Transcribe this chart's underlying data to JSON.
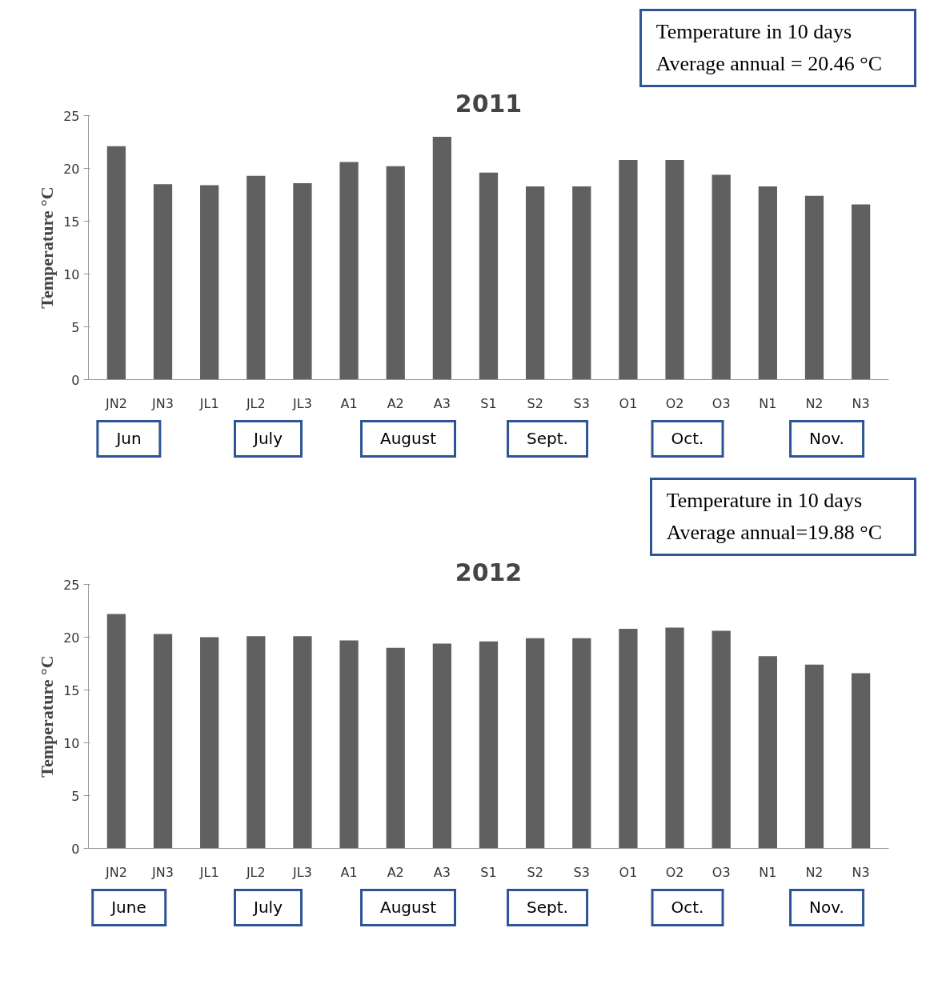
{
  "chart_data": [
    {
      "type": "bar",
      "title": "2011",
      "ylabel": "Temperature °C",
      "categories": [
        "JN2",
        "JN3",
        "JL1",
        "JL2",
        "JL3",
        "A1",
        "A2",
        "A3",
        "S1",
        "S2",
        "S3",
        "O1",
        "O2",
        "O3",
        "N1",
        "N2",
        "N3"
      ],
      "values": [
        22.1,
        18.5,
        18.4,
        19.3,
        18.6,
        20.6,
        20.2,
        23.0,
        19.6,
        18.3,
        18.3,
        20.8,
        20.8,
        19.4,
        18.3,
        17.4,
        16.6
      ],
      "color": "#606060",
      "ylim": [
        0,
        25
      ],
      "yticks": [
        0,
        5,
        10,
        15,
        20,
        25
      ],
      "grid": false,
      "legend": false,
      "annotations": [
        "Temperature in  10 days",
        "Average annual = 20.46 °C",
        "Jun",
        "July",
        "August",
        "Sept.",
        "Oct.",
        "Nov."
      ]
    },
    {
      "type": "bar",
      "title": "2012",
      "ylabel": "Temperature °C",
      "categories": [
        "JN2",
        "JN3",
        "JL1",
        "JL2",
        "JL3",
        "A1",
        "A2",
        "A3",
        "S1",
        "S2",
        "S3",
        "O1",
        "O2",
        "O3",
        "N1",
        "N2",
        "N3"
      ],
      "values": [
        22.2,
        20.3,
        20.0,
        20.1,
        20.1,
        19.7,
        19.0,
        19.4,
        19.6,
        19.9,
        19.9,
        20.8,
        20.9,
        20.6,
        18.2,
        17.4,
        16.6
      ],
      "color": "#606060",
      "ylim": [
        0,
        25
      ],
      "yticks": [
        0,
        5,
        10,
        15,
        20,
        25
      ],
      "grid": false,
      "legend": false,
      "annotations": [
        "Temperature in  10 days",
        "Average annual=19.88 °C",
        "June",
        "July",
        "August",
        "Sept.",
        "Oct.",
        "Nov."
      ]
    }
  ]
}
